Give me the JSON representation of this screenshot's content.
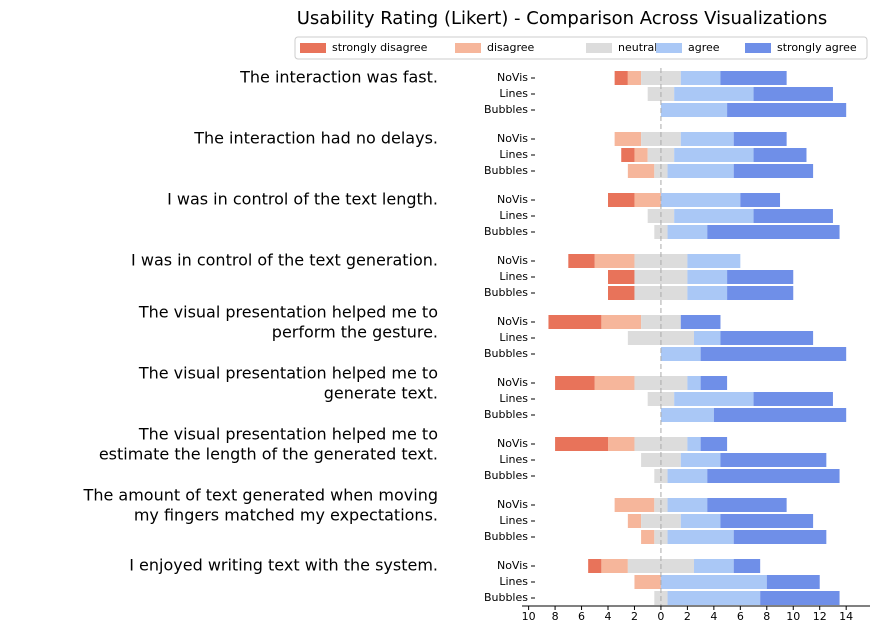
{
  "chart_data": {
    "type": "diverging_stacked_bar",
    "title": "Usability Rating (Likert) - Comparison Across Visualizations",
    "questions": [
      [
        "The interaction was fast."
      ],
      [
        "The interaction had no delays."
      ],
      [
        "I was in control of the text length."
      ],
      [
        "I was in control of the text generation."
      ],
      [
        "The visual presentation helped me to",
        "perform the gesture."
      ],
      [
        "The visual presentation helped me to",
        "generate text."
      ],
      [
        "The visual presentation helped me to",
        "estimate the length of the generated text."
      ],
      [
        "The amount of text generated when moving",
        "my fingers matched my expectations."
      ],
      [
        "I enjoyed writing text with the system."
      ]
    ],
    "conditions": [
      "NoVis",
      "Lines",
      "Bubbles"
    ],
    "series": [
      {
        "name": "strongly disagree",
        "color": "#e8735a",
        "values": [
          [
            1,
            0,
            0
          ],
          [
            0,
            1,
            0
          ],
          [
            2,
            0,
            0
          ],
          [
            2,
            2,
            2
          ],
          [
            4,
            0,
            0
          ],
          [
            3,
            0,
            0
          ],
          [
            4,
            0,
            0
          ],
          [
            0,
            0,
            0
          ],
          [
            1,
            0,
            0
          ]
        ]
      },
      {
        "name": "disagree",
        "color": "#f6b69b",
        "values": [
          [
            1,
            0,
            0
          ],
          [
            2,
            1,
            2
          ],
          [
            2,
            0,
            0
          ],
          [
            3,
            0,
            0
          ],
          [
            3,
            0,
            0
          ],
          [
            3,
            0,
            0
          ],
          [
            2,
            0,
            0
          ],
          [
            3,
            1,
            1
          ],
          [
            2,
            2,
            0
          ]
        ]
      },
      {
        "name": "neutral",
        "color": "#dcdcdc",
        "values": [
          [
            3,
            2,
            0
          ],
          [
            3,
            2,
            1
          ],
          [
            0,
            2,
            1
          ],
          [
            4,
            4,
            4
          ],
          [
            3,
            5,
            0
          ],
          [
            4,
            2,
            0
          ],
          [
            4,
            3,
            1
          ],
          [
            1,
            3,
            1
          ],
          [
            5,
            0,
            1
          ]
        ]
      },
      {
        "name": "agree",
        "color": "#aac8f6",
        "values": [
          [
            3,
            6,
            5
          ],
          [
            4,
            6,
            5
          ],
          [
            6,
            6,
            3
          ],
          [
            4,
            3,
            3
          ],
          [
            0,
            2,
            3
          ],
          [
            1,
            6,
            4
          ],
          [
            1,
            3,
            3
          ],
          [
            3,
            3,
            5
          ],
          [
            3,
            8,
            7
          ]
        ]
      },
      {
        "name": "strongly agree",
        "color": "#6f8fe8",
        "values": [
          [
            5,
            6,
            9
          ],
          [
            4,
            4,
            6
          ],
          [
            3,
            6,
            10
          ],
          [
            0,
            5,
            5
          ],
          [
            3,
            7,
            11
          ],
          [
            2,
            6,
            10
          ],
          [
            2,
            8,
            10
          ],
          [
            6,
            7,
            7
          ],
          [
            2,
            4,
            6
          ]
        ]
      }
    ],
    "xlim": [
      -10.5,
      15.8
    ],
    "xticks": [
      {
        "value": -10,
        "label": "10"
      },
      {
        "value": -8,
        "label": "8"
      },
      {
        "value": -6,
        "label": "6"
      },
      {
        "value": -4,
        "label": "4"
      },
      {
        "value": -2,
        "label": "2"
      },
      0,
      2,
      4,
      6,
      8,
      10,
      12,
      14
    ]
  }
}
